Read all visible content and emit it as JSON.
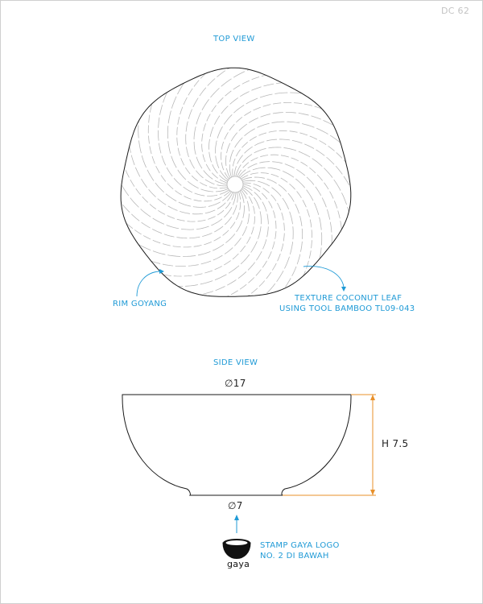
{
  "sheet_code": "DC 62",
  "top_view": {
    "title": "TOP VIEW",
    "callout_rim": "RIM GOYANG",
    "callout_texture_line1": "TEXTURE COCONUT LEAF",
    "callout_texture_line2": "USING TOOL BAMBOO TL09-043"
  },
  "side_view": {
    "title": "SIDE VIEW",
    "top_diameter": "∅17",
    "height": "H 7.5",
    "base_diameter": "∅7",
    "stamp_line1": "STAMP GAYA LOGO",
    "stamp_line2": "NO. 2 DI BAWAH",
    "logo_text": "gaya"
  },
  "colors": {
    "annotation": "#1f9ad6",
    "dimension_line": "#e8902a",
    "outline": "#1a1a1a",
    "texture": "#b8b8b8"
  }
}
